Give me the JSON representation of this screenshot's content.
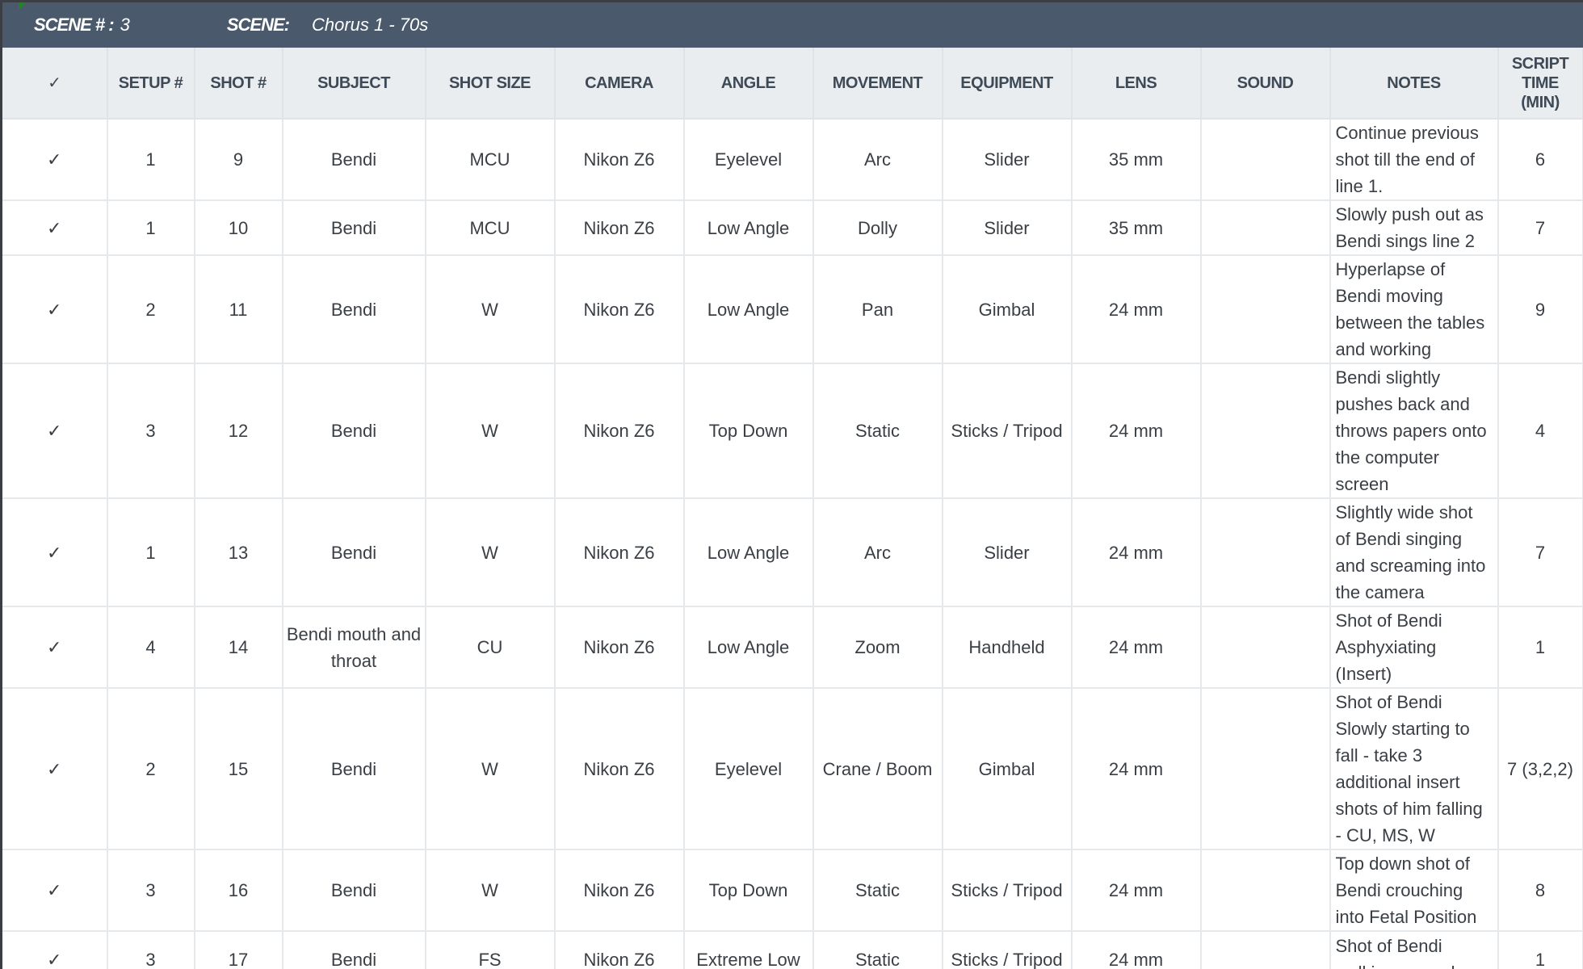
{
  "scene": {
    "number_label": "SCENE # :",
    "number": "3",
    "name_label": "SCENE:",
    "name": "Chorus 1 - 70s"
  },
  "columns": [
    "✓",
    "SETUP #",
    "SHOT #",
    "SUBJECT",
    "SHOT SIZE",
    "CAMERA",
    "ANGLE",
    "MOVEMENT",
    "EQUIPMENT",
    "LENS",
    "SOUND",
    "NOTES",
    "SCRIPT TIME (MIN)"
  ],
  "rows": [
    [
      "✓",
      "1",
      "9",
      "Bendi",
      "MCU",
      "Nikon Z6",
      "Eyelevel",
      "Arc",
      "Slider",
      "35 mm",
      "",
      "Continue previous shot till the end of line 1.",
      "6"
    ],
    [
      "✓",
      "1",
      "10",
      "Bendi",
      "MCU",
      "Nikon Z6",
      "Low Angle",
      "Dolly",
      "Slider",
      "35 mm",
      "",
      "Slowly push out as Bendi sings line 2",
      "7"
    ],
    [
      "✓",
      "2",
      "11",
      "Bendi",
      "W",
      "Nikon Z6",
      "Low Angle",
      "Pan",
      "Gimbal",
      "24 mm",
      "",
      "Hyperlapse of Bendi moving between the tables and working",
      "9"
    ],
    [
      "✓",
      "3",
      "12",
      "Bendi",
      "W",
      "Nikon Z6",
      "Top Down",
      "Static",
      "Sticks / Tripod",
      "24 mm",
      "",
      "Bendi slightly pushes back and throws papers onto the computer screen",
      "4"
    ],
    [
      "✓",
      "1",
      "13",
      "Bendi",
      "W",
      "Nikon Z6",
      "Low Angle",
      "Arc",
      "Slider",
      "24 mm",
      "",
      "Slightly wide shot of Bendi singing and screaming into the camera",
      "7"
    ],
    [
      "✓",
      "4",
      "14",
      "Bendi mouth and throat",
      "CU",
      "Nikon Z6",
      "Low Angle",
      "Zoom",
      "Handheld",
      "24 mm",
      "",
      "Shot of Bendi Asphyxiating (Insert)",
      "1"
    ],
    [
      "✓",
      "2",
      "15",
      "Bendi",
      "W",
      "Nikon Z6",
      "Eyelevel",
      "Crane / Boom",
      "Gimbal",
      "24 mm",
      "",
      "Shot of Bendi Slowly starting to fall - take 3 additional insert shots of him falling - CU, MS, W",
      "7 (3,2,2)"
    ],
    [
      "✓",
      "3",
      "16",
      "Bendi",
      "W",
      "Nikon Z6",
      "Top Down",
      "Static",
      "Sticks / Tripod",
      "24 mm",
      "",
      "Top down shot of Bendi crouching into Fetal Position",
      "8"
    ],
    [
      "✓",
      "3",
      "17",
      "Bendi",
      "FS",
      "Nikon Z6",
      "Extreme Low",
      "Static",
      "Sticks / Tripod",
      "24 mm",
      "",
      "Shot of Bendi walking around",
      "1"
    ]
  ]
}
